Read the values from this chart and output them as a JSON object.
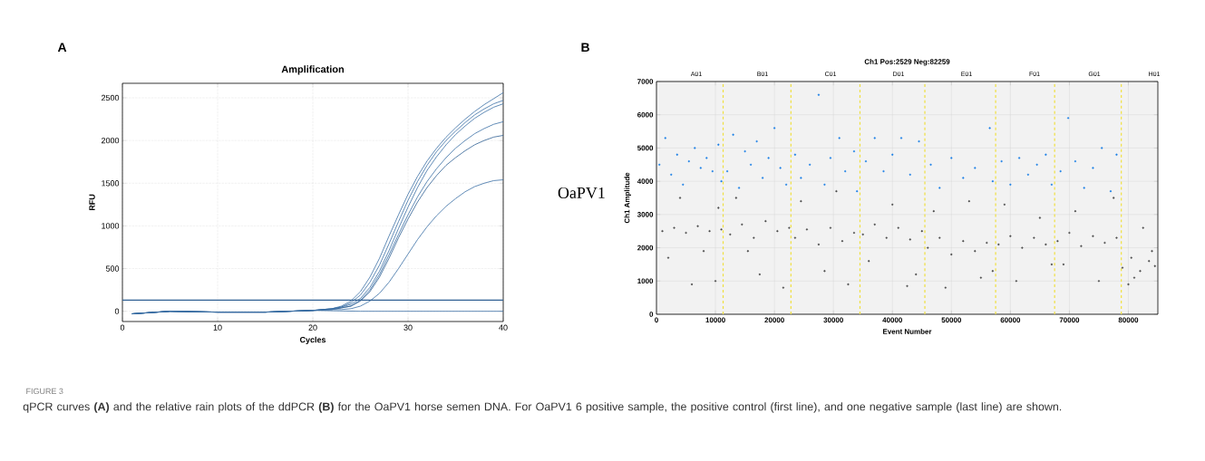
{
  "chart_data": [
    {
      "type": "line",
      "title": "Amplification",
      "xlabel": "Cycles",
      "ylabel": "RFU",
      "xlim": [
        0,
        40
      ],
      "xticks": [
        0,
        10,
        20,
        30,
        40
      ],
      "ylim": [
        -120,
        2670
      ],
      "yticks": [
        0,
        500,
        1000,
        1500,
        2000,
        2500
      ],
      "grid": true,
      "line_style": "solid",
      "marker": "none",
      "ref_lines": [
        {
          "axis": "y",
          "value": 130,
          "color": "#2f5f93"
        }
      ],
      "series": [
        {
          "color": "#3a6ea5",
          "x": [
            1,
            5,
            10,
            15,
            20,
            22,
            23,
            24,
            25,
            26,
            27,
            28,
            29,
            30,
            31,
            32,
            33,
            34,
            35,
            36,
            37,
            38,
            39,
            40
          ],
          "values": [
            -30,
            0,
            -10,
            -10,
            10,
            30,
            60,
            120,
            230,
            400,
            620,
            880,
            1130,
            1370,
            1580,
            1760,
            1910,
            2040,
            2150,
            2250,
            2340,
            2420,
            2490,
            2560
          ]
        },
        {
          "color": "#3a6ea5",
          "x": [
            1,
            5,
            10,
            15,
            20,
            22,
            23,
            24,
            25,
            26,
            27,
            28,
            29,
            30,
            31,
            32,
            33,
            34,
            35,
            36,
            37,
            38,
            39,
            40
          ],
          "values": [
            -30,
            0,
            -10,
            -10,
            10,
            30,
            50,
            100,
            190,
            340,
            540,
            790,
            1050,
            1300,
            1520,
            1710,
            1870,
            2000,
            2110,
            2210,
            2300,
            2370,
            2430,
            2470
          ]
        },
        {
          "color": "#3a6ea5",
          "x": [
            1,
            5,
            10,
            15,
            20,
            22,
            23,
            24,
            25,
            26,
            27,
            28,
            29,
            30,
            31,
            32,
            33,
            34,
            35,
            36,
            37,
            38,
            39,
            40
          ],
          "values": [
            -30,
            0,
            -10,
            -10,
            10,
            30,
            50,
            80,
            150,
            280,
            470,
            710,
            970,
            1220,
            1450,
            1650,
            1810,
            1950,
            2070,
            2170,
            2260,
            2330,
            2390,
            2430
          ]
        },
        {
          "color": "#3a6ea5",
          "x": [
            1,
            5,
            10,
            15,
            20,
            22,
            23,
            24,
            25,
            26,
            27,
            28,
            29,
            30,
            31,
            32,
            33,
            34,
            35,
            36,
            37,
            38,
            39,
            40
          ],
          "values": [
            -30,
            0,
            -10,
            -10,
            10,
            20,
            40,
            60,
            130,
            250,
            430,
            660,
            900,
            1130,
            1340,
            1520,
            1670,
            1800,
            1910,
            2000,
            2080,
            2140,
            2190,
            2220
          ]
        },
        {
          "color": "#2f5f93",
          "x": [
            1,
            5,
            10,
            15,
            20,
            22,
            23,
            24,
            25,
            26,
            27,
            28,
            29,
            30,
            31,
            32,
            33,
            34,
            35,
            36,
            37,
            38,
            39,
            40
          ],
          "values": [
            -30,
            0,
            -10,
            -10,
            10,
            20,
            40,
            60,
            120,
            230,
            400,
            620,
            860,
            1080,
            1280,
            1450,
            1590,
            1710,
            1800,
            1880,
            1950,
            2000,
            2040,
            2060
          ]
        },
        {
          "color": "#3a6ea5",
          "x": [
            1,
            5,
            10,
            15,
            20,
            22,
            23,
            24,
            25,
            26,
            27,
            28,
            29,
            30,
            31,
            32,
            33,
            34,
            35,
            36,
            37,
            38,
            39,
            40
          ],
          "values": [
            -30,
            0,
            -10,
            -10,
            10,
            20,
            20,
            30,
            60,
            120,
            210,
            340,
            500,
            670,
            840,
            990,
            1120,
            1230,
            1320,
            1400,
            1460,
            1500,
            1530,
            1540
          ]
        },
        {
          "color": "#3a6ea5",
          "x": [
            1,
            5,
            10,
            15,
            20,
            25,
            30,
            35,
            40
          ],
          "values": [
            -30,
            0,
            -10,
            -10,
            10,
            0,
            0,
            0,
            0
          ]
        }
      ],
      "annotations": [
        "A",
        "FIGURE 3",
        "qPCR curves **(A)** and the relative rain plots of the ddPCR **(B)** for the OaPV1 horse semen DNA. For OaPV1 6 positive sample, the positive control (first line), and one negative sample (last line) are shown."
      ]
    },
    {
      "type": "scatter",
      "title": "Ch1 Pos:2529 Neg:82259",
      "xlabel": "Event Number",
      "ylabel": "Ch1 Amplitude",
      "xlim": [
        0,
        85000
      ],
      "xticks": [
        0,
        10000,
        20000,
        30000,
        40000,
        50000,
        60000,
        70000,
        80000
      ],
      "ylim": [
        0,
        7000
      ],
      "yticks": [
        0,
        1000,
        2000,
        3000,
        4000,
        5000,
        6000,
        7000
      ],
      "grid": true,
      "marker": "circle",
      "ref_lines": [
        {
          "axis": "x",
          "value": 11300,
          "color": "#f0e040",
          "line_style": "dashed"
        },
        {
          "axis": "x",
          "value": 22800,
          "color": "#f0e040",
          "line_style": "dashed"
        },
        {
          "axis": "x",
          "value": 34500,
          "color": "#f0e040",
          "line_style": "dashed"
        },
        {
          "axis": "x",
          "value": 45500,
          "color": "#f0e040",
          "line_style": "dashed"
        },
        {
          "axis": "x",
          "value": 57500,
          "color": "#f0e040",
          "line_style": "dashed"
        },
        {
          "axis": "x",
          "value": 67500,
          "color": "#f0e040",
          "line_style": "dashed"
        },
        {
          "axis": "x",
          "value": 78800,
          "color": "#f0e040",
          "line_style": "dashed"
        }
      ],
      "series": [
        {
          "color": "#1a7fe6",
          "x": [
            500,
            1500,
            2500,
            3500,
            4500,
            5500,
            6500,
            7500,
            8500,
            9500,
            10500,
            11000,
            12000,
            13000,
            14000,
            15000,
            16000,
            17000,
            18000,
            19000,
            20000,
            21000,
            22000,
            23500,
            24500,
            26000,
            27500,
            28500,
            29500,
            31000,
            32000,
            33500,
            34000,
            35500,
            37000,
            38500,
            40000,
            41500,
            43000,
            44500,
            46500,
            48000,
            50000,
            52000,
            54000,
            56500,
            57000,
            58500,
            60000,
            61500,
            63000,
            64500,
            66000,
            67000,
            68500,
            69800,
            71000,
            72500,
            74000,
            75500,
            77000,
            78000
          ],
          "values": [
            4500,
            5300,
            4200,
            4800,
            3900,
            4600,
            5000,
            4400,
            4700,
            4300,
            5100,
            4000,
            4300,
            5400,
            3800,
            4900,
            4500,
            5200,
            4100,
            4700,
            5600,
            4400,
            3900,
            4800,
            4100,
            4500,
            6600,
            3900,
            4700,
            5300,
            4300,
            4900,
            3700,
            4600,
            5300,
            4300,
            4800,
            5300,
            4200,
            5200,
            4500,
            3800,
            4700,
            4100,
            4400,
            5600,
            4000,
            4600,
            3900,
            4700,
            4200,
            4500,
            4800,
            3900,
            4300,
            5900,
            4600,
            3800,
            4400,
            5000,
            3700,
            4800
          ]
        },
        {
          "color": "#4a4a4a",
          "x": [
            1000,
            3000,
            5000,
            7000,
            9000,
            11000,
            2000,
            4000,
            6000,
            8000,
            10000,
            10500,
            12500,
            14500,
            16500,
            18500,
            20500,
            22500,
            13500,
            17500,
            21500,
            15500,
            23500,
            25500,
            27500,
            29500,
            31500,
            33500,
            24500,
            28500,
            32500,
            30500,
            35000,
            37000,
            39000,
            41000,
            43000,
            45000,
            36000,
            40000,
            42500,
            44000,
            46000,
            48000,
            50000,
            52000,
            54000,
            56000,
            57000,
            47000,
            49000,
            53000,
            55000,
            58000,
            60000,
            62000,
            64000,
            66000,
            67000,
            59000,
            61000,
            65000,
            68000,
            70000,
            72000,
            74000,
            76000,
            78000,
            69000,
            71000,
            75000,
            77500,
            79000,
            80500,
            82000,
            83500,
            84500,
            80000,
            82500,
            81000,
            84000
          ],
          "values": [
            2500,
            2600,
            2450,
            2650,
            2500,
            2550,
            1700,
            3500,
            900,
            1900,
            1000,
            3200,
            2400,
            2700,
            2300,
            2800,
            2500,
            2600,
            3500,
            1200,
            800,
            1900,
            2300,
            2550,
            2100,
            2600,
            2200,
            2450,
            3400,
            1300,
            900,
            3700,
            2400,
            2700,
            2300,
            2600,
            2250,
            2500,
            1600,
            3300,
            850,
            1200,
            2000,
            2300,
            1800,
            2200,
            1900,
            2150,
            1300,
            3100,
            800,
            3400,
            1100,
            2100,
            2350,
            2000,
            2300,
            2100,
            1500,
            3300,
            1000,
            2900,
            2200,
            2450,
            2050,
            2350,
            2150,
            2300,
            1500,
            3100,
            1000,
            3500,
            1400,
            1700,
            1300,
            1600,
            1450,
            900,
            2600,
            1100,
            1900
          ]
        }
      ],
      "annotations": [
        "B",
        "OaPV1",
        "A01",
        "B01",
        "C01",
        "D01",
        "E01",
        "F01",
        "G01",
        "H01"
      ]
    }
  ]
}
